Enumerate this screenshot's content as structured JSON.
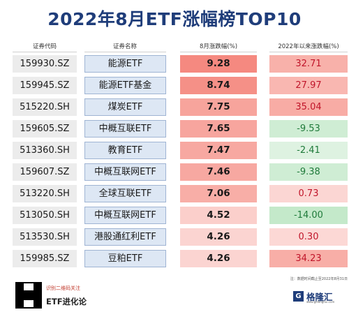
{
  "title": "2022年8月ETF涨幅榜TOP10",
  "headers": {
    "code": "证券代码",
    "name": "证券名称",
    "aug": "8月涨跌幅(%)",
    "ytd": "2022年以来涨跌幅(%)"
  },
  "colors": {
    "title": "#1f3d7a",
    "positive": "#c0152a",
    "negative": "#1f7a3a"
  },
  "rows": [
    {
      "code": "159930.SZ",
      "name": "能源ETF",
      "aug": "9.28",
      "ytd": "32.71",
      "aug_level": 1.0,
      "ytd_sign": "pos",
      "ytd_level": 0.55
    },
    {
      "code": "159945.SZ",
      "name": "能源ETF基金",
      "aug": "8.74",
      "ytd": "27.97",
      "aug_level": 0.92,
      "ytd_sign": "pos",
      "ytd_level": 0.48
    },
    {
      "code": "515220.SH",
      "name": "煤炭ETF",
      "aug": "7.75",
      "ytd": "35.04",
      "aug_level": 0.7,
      "ytd_sign": "pos",
      "ytd_level": 0.6
    },
    {
      "code": "159605.SZ",
      "name": "中概互联ETF",
      "aug": "7.65",
      "ytd": "-9.53",
      "aug_level": 0.68,
      "ytd_sign": "neg",
      "ytd_level": 0.3
    },
    {
      "code": "513360.SH",
      "name": "教育ETF",
      "aug": "7.47",
      "ytd": "-2.41",
      "aug_level": 0.65,
      "ytd_sign": "neg",
      "ytd_level": 0.1
    },
    {
      "code": "159607.SZ",
      "name": "中概互联网ETF",
      "aug": "7.46",
      "ytd": "-9.38",
      "aug_level": 0.65,
      "ytd_sign": "neg",
      "ytd_level": 0.3
    },
    {
      "code": "513220.SH",
      "name": "全球互联ETF",
      "aug": "7.06",
      "ytd": "0.73",
      "aug_level": 0.58,
      "ytd_sign": "pos",
      "ytd_level": 0.12
    },
    {
      "code": "513050.SH",
      "name": "中概互联网ETF",
      "aug": "4.52",
      "ytd": "-14.00",
      "aug_level": 0.2,
      "ytd_sign": "neg",
      "ytd_level": 0.45
    },
    {
      "code": "513530.SH",
      "name": "港股通红利ETF",
      "aug": "4.26",
      "ytd": "0.30",
      "aug_level": 0.14,
      "ytd_sign": "pos",
      "ytd_level": 0.1
    },
    {
      "code": "159985.SZ",
      "name": "豆粕ETF",
      "aug": "4.26",
      "ytd": "34.23",
      "aug_level": 0.14,
      "ytd_sign": "pos",
      "ytd_level": 0.58
    }
  ],
  "footer": {
    "qr_caption": "识别二维码关注",
    "brand": "ETF进化论",
    "note": "注：数据时间截止至2022年8月31日",
    "logo_mark": "G",
    "logo_text": "格隆汇",
    "logo_sub": "www.gelonghui.com"
  }
}
